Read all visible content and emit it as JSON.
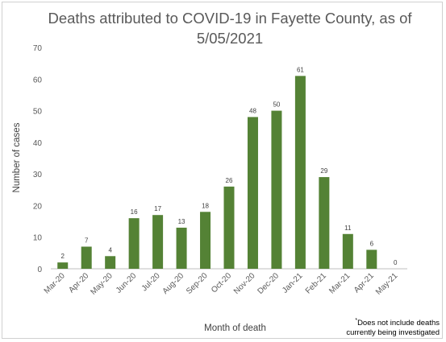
{
  "chart_data": {
    "type": "bar",
    "title_line1": "Deaths attributed to COVID-19 in Fayette County, as of",
    "title_line2": "5/05/2021",
    "xlabel": "Month of death",
    "ylabel": "Number of cases",
    "categories": [
      "Mar-20",
      "Apr-20",
      "May-20",
      "Jun-20",
      "Jul-20",
      "Aug-20",
      "Sep-20",
      "Oct-20",
      "Nov-20",
      "Dec-20",
      "Jan-21",
      "Feb-21",
      "Mar-21",
      "Apr-21",
      "May-21"
    ],
    "values": [
      2,
      7,
      4,
      16,
      17,
      13,
      18,
      26,
      48,
      50,
      61,
      29,
      11,
      6,
      0
    ],
    "ylim": [
      0,
      70
    ],
    "yticks": [
      0,
      10,
      20,
      30,
      40,
      50,
      60,
      70
    ],
    "grid": false,
    "bar_color": "#548235",
    "footnote_line1": "Does not include deaths",
    "footnote_line2": "currently being investigated",
    "footnote_mark": "*"
  }
}
